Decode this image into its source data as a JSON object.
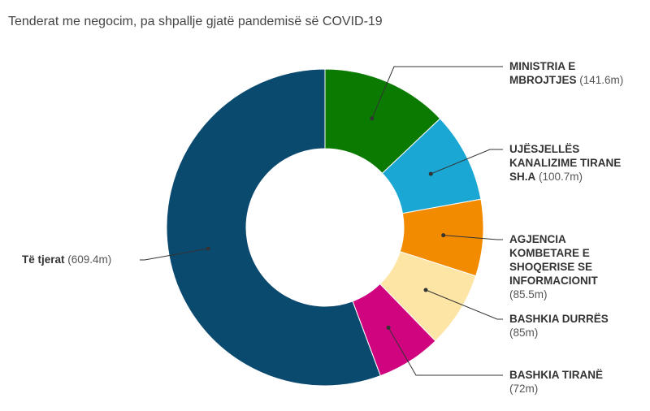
{
  "title": "Tenderat me negocim, pa shpallje gjatë pandemisë së COVID-19",
  "chart_data": {
    "type": "donut",
    "title": "Tenderat me negocim, pa shpallje gjatë pandemisë së COVID-19",
    "unit": "m",
    "slices": [
      {
        "label_lines": [
          "MINISTRIA E",
          "MBROJTJES"
        ],
        "value": 141.6,
        "value_text": "(141.6m)",
        "color": "#0a7a00"
      },
      {
        "label_lines": [
          "UJËSJELLËS",
          "KANALIZIME TIRANE",
          "SH.A"
        ],
        "value": 100.7,
        "value_text": "(100.7m)",
        "color": "#1aa7d4"
      },
      {
        "label_lines": [
          "AGJENCIA",
          "KOMBETARE E",
          "SHOQERISE SE",
          "INFORMACIONIT"
        ],
        "value": 85.5,
        "value_text": "(85.5m)",
        "color": "#f28b00"
      },
      {
        "label_lines": [
          "BASHKIA DURRËS"
        ],
        "value": 85,
        "value_text": "(85m)",
        "color": "#fde5a6"
      },
      {
        "label_lines": [
          "BASHKIA TIRANË"
        ],
        "value": 72,
        "value_text": "(72m)",
        "color": "#d0047f"
      },
      {
        "label_lines": [
          "Të tjerat"
        ],
        "value": 609.4,
        "value_text": "(609.4m)",
        "color": "#0b4a6f"
      }
    ]
  }
}
